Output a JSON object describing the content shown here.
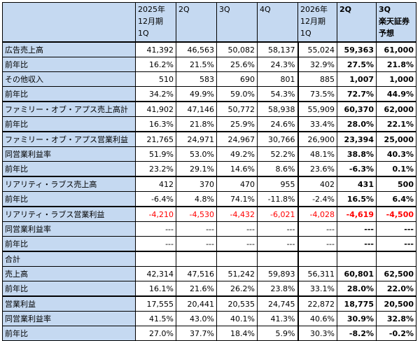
{
  "headers": [
    "",
    "2025年\n12月期\n1Q",
    "2Q",
    "3Q",
    "4Q",
    "2026年\n12月期\n1Q",
    "2Q",
    "3Q\n楽天証券\n予想"
  ],
  "rows": [
    {
      "label": "広告売上高",
      "section": true,
      "cells": [
        "41,392",
        "46,563",
        "50,082",
        "58,137",
        "55,024",
        "59,363",
        "61,000"
      ]
    },
    {
      "label": "前年比",
      "cells": [
        "16.2%",
        "21.5%",
        "25.6%",
        "24.3%",
        "32.9%",
        "27.5%",
        "21.8%"
      ]
    },
    {
      "label": "その他収入",
      "cells": [
        "510",
        "583",
        "690",
        "801",
        "885",
        "1,007",
        "1,000"
      ]
    },
    {
      "label": "前年比",
      "cells": [
        "34.2%",
        "49.9%",
        "59.0%",
        "54.3%",
        "73.5%",
        "72.7%",
        "44.9%"
      ]
    },
    {
      "label": "ファミリー・オブ・アプス売上高計",
      "section": true,
      "cells": [
        "41,902",
        "47,146",
        "50,772",
        "58,938",
        "55,909",
        "60,370",
        "62,000"
      ]
    },
    {
      "label": "前年比",
      "cells": [
        "16.3%",
        "21.8%",
        "25.9%",
        "24.6%",
        "33.4%",
        "28.0%",
        "22.1%"
      ]
    },
    {
      "label": "ファミリー・オブ・アプス営業利益",
      "section": true,
      "cells": [
        "21,765",
        "24,971",
        "24,967",
        "30,766",
        "26,900",
        "23,394",
        "25,000"
      ]
    },
    {
      "label": "同営業利益率",
      "cells": [
        "51.9%",
        "53.0%",
        "49.2%",
        "52.2%",
        "48.1%",
        "38.8%",
        "40.3%"
      ]
    },
    {
      "label": "前年比",
      "cells": [
        "23.2%",
        "29.1%",
        "14.6%",
        "8.6%",
        "23.6%",
        "-6.3%",
        "0.1%"
      ]
    },
    {
      "label": "リアリティ・ラブス売上高",
      "section": true,
      "cells": [
        "412",
        "370",
        "470",
        "955",
        "402",
        "431",
        "500"
      ]
    },
    {
      "label": "前年比",
      "cells": [
        "-6.4%",
        "4.8%",
        "74.1%",
        "-11.8%",
        "-2.4%",
        "16.5%",
        "6.4%"
      ]
    },
    {
      "label": "リアリティ・ラブス営業利益",
      "section": true,
      "negative": true,
      "cells": [
        "-4,210",
        "-4,530",
        "-4,432",
        "-6,021",
        "-4,028",
        "-4,619",
        "-4,500"
      ]
    },
    {
      "label": "同営業利益率",
      "cells": [
        "---",
        "---",
        "---",
        "---",
        "---",
        "---",
        "---"
      ]
    },
    {
      "label": "前年比",
      "cells": [
        "---",
        "---",
        "---",
        "---",
        "---",
        "---",
        "---"
      ]
    },
    {
      "label": "合計",
      "section": true,
      "cells": [
        "",
        "",
        "",
        "",
        "",
        "",
        ""
      ]
    },
    {
      "label": "売上高",
      "cells": [
        "42,314",
        "47,516",
        "51,242",
        "59,893",
        "56,311",
        "60,801",
        "62,500"
      ]
    },
    {
      "label": "前年比",
      "cells": [
        "16.1%",
        "21.6%",
        "26.2%",
        "23.8%",
        "33.1%",
        "28.0%",
        "22.0%"
      ]
    },
    {
      "label": "営業利益",
      "section": true,
      "cells": [
        "17,555",
        "20,441",
        "20,535",
        "24,745",
        "22,872",
        "18,775",
        "20,500"
      ]
    },
    {
      "label": "同営業利益率",
      "cells": [
        "41.5%",
        "43.0%",
        "40.1%",
        "41.3%",
        "40.6%",
        "30.9%",
        "32.8%"
      ]
    },
    {
      "label": "前年比",
      "cells": [
        "27.0%",
        "37.7%",
        "18.4%",
        "5.9%",
        "30.3%",
        "-8.2%",
        "-0.2%"
      ]
    }
  ],
  "colors": {
    "header_bg": "#c5d9f1",
    "negative_text": "#ff0000"
  }
}
